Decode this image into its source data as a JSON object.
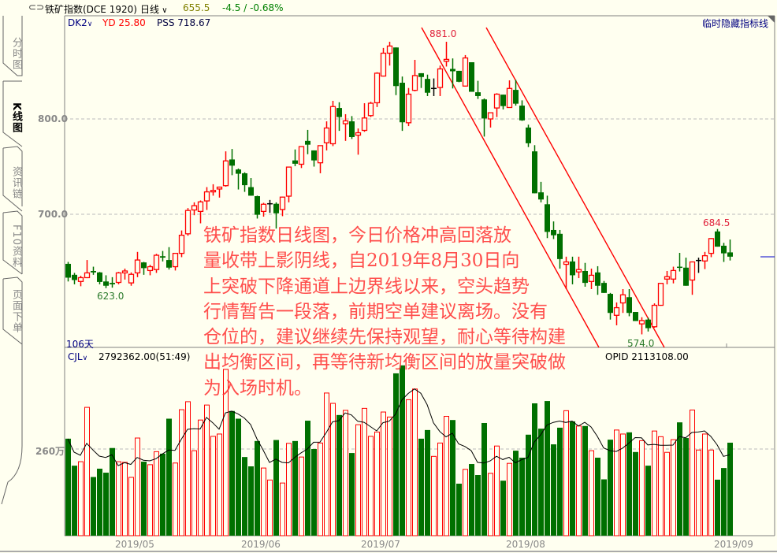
{
  "header": {
    "link_icon": "chain-link-icon",
    "instrument": "铁矿指数(DCE 1920)",
    "period": "日线",
    "last_price": "655.5",
    "change": "-4.5 / -0.68%",
    "hide_indicators_label": "临时隐藏指标线"
  },
  "sidebar": {
    "tabs": [
      {
        "label": "分时图",
        "active": false
      },
      {
        "label": "K线图",
        "active": true
      },
      {
        "label": "资讯链",
        "active": false
      },
      {
        "label": "F10资料",
        "active": false
      },
      {
        "label": "页面下单",
        "active": false
      }
    ]
  },
  "price_panel": {
    "indicator": "DK2",
    "yd_label": "YD 25.80",
    "pss_label": "PSS 718.67",
    "days_label": "106天",
    "high_label": "881.0",
    "low_label": "574.0",
    "left_low_label": "623.0",
    "right_high_label": "684.5"
  },
  "volume_panel": {
    "indicator": "CJL",
    "value_label": "2792362.00(51:49)",
    "opid_label": "OPID 2113108.00"
  },
  "annotation_text": "铁矿指数日线图，今日价格冲高回落放\n量收带上影阴线，自2019年8月30日向\n上突破下降通道上边界线以来，空头趋势\n行情暂告一段落，前期空单建议离场。没有\n仓位的，建议继续先保持观望，耐心等待构建\n出均衡区间，再等待新均衡区间的放量突破做\n为入场时机。",
  "colors": {
    "up": "#ff0000",
    "down": "#007000",
    "doji": "#000000",
    "background": "#fffff0",
    "channel": "#ff0000"
  },
  "chart_data": {
    "type": "candlestick",
    "price_ticks": [
      "800.0",
      "700.0"
    ],
    "price_tick_values": [
      800,
      700
    ],
    "volume_tick": "260万",
    "volume_tick_value": 260,
    "volume_unit": "万",
    "x_labels": [
      "2019/05",
      "2019/06",
      "2019/07",
      "2019/08",
      "2019/09"
    ],
    "ohlc": [
      [
        648,
        650,
        629.5,
        633.5
      ],
      [
        636.5,
        638.5,
        626.5,
        631
      ],
      [
        629.5,
        635.5,
        624.5,
        633.5
      ],
      [
        633.5,
        652,
        633,
        638.5
      ],
      [
        640.5,
        645,
        636.5,
        639
      ],
      [
        639,
        639.5,
        626.5,
        629
      ],
      [
        629.5,
        636,
        622.5,
        625
      ],
      [
        628,
        634,
        623,
        626.5
      ],
      [
        628.5,
        639.5,
        626.5,
        638.5
      ],
      [
        638.5,
        643,
        631.5,
        640.5
      ],
      [
        628,
        639,
        625,
        637
      ],
      [
        638.5,
        660.5,
        634,
        652
      ],
      [
        649.5,
        650,
        636.5,
        643.5
      ],
      [
        641,
        647,
        636,
        645
      ],
      [
        642,
        658.5,
        638.5,
        657
      ],
      [
        656,
        661.5,
        650.5,
        654.5
      ],
      [
        652,
        665.5,
        642,
        644
      ],
      [
        645,
        659,
        641,
        659
      ],
      [
        659,
        683,
        655,
        678
      ],
      [
        679.5,
        706.5,
        677.5,
        704
      ],
      [
        704.5,
        712.5,
        699,
        709
      ],
      [
        703,
        714.5,
        690.5,
        713
      ],
      [
        714,
        728.5,
        704.5,
        723.5
      ],
      [
        723.5,
        731.5,
        719.5,
        725
      ],
      [
        726.5,
        729,
        717.5,
        728.5
      ],
      [
        730,
        766,
        729,
        756
      ],
      [
        757.5,
        768.5,
        741,
        751
      ],
      [
        747,
        748,
        726,
        742.5
      ],
      [
        743,
        744,
        723.5,
        730.5
      ],
      [
        728.5,
        738,
        719.5,
        719.5
      ],
      [
        719,
        719.5,
        695.5,
        699.5
      ],
      [
        703,
        712,
        697.5,
        710.5
      ],
      [
        711,
        715,
        701.5,
        711
      ],
      [
        711,
        712.5,
        685,
        701
      ],
      [
        705,
        718.5,
        698,
        718
      ],
      [
        719,
        750,
        712.5,
        749.5
      ],
      [
        756.5,
        768,
        750.5,
        753
      ],
      [
        752.5,
        771,
        748.5,
        771
      ],
      [
        777,
        788.5,
        763,
        773
      ],
      [
        767,
        767,
        750,
        756.5
      ],
      [
        754,
        772,
        743,
        772
      ],
      [
        775,
        797.5,
        767,
        790.5
      ],
      [
        774,
        819,
        771.5,
        813
      ],
      [
        811.5,
        817.5,
        787.5,
        802
      ],
      [
        795,
        805,
        777,
        798
      ],
      [
        797.5,
        803,
        779,
        781
      ],
      [
        783,
        790,
        762.5,
        785.5
      ],
      [
        788,
        816.5,
        786.5,
        801
      ],
      [
        803.5,
        818,
        802,
        816.5
      ],
      [
        817,
        849,
        812.5,
        848
      ],
      [
        845,
        874.5,
        844.5,
        869
      ],
      [
        869,
        881,
        856,
        876.5
      ],
      [
        875,
        875,
        825,
        834.5
      ],
      [
        838,
        844.5,
        787.5,
        796.5
      ],
      [
        796,
        832.5,
        792.5,
        826
      ],
      [
        830,
        862,
        829,
        845.5
      ],
      [
        848,
        848,
        832.5,
        844
      ],
      [
        842,
        846.5,
        824,
        827.5
      ],
      [
        832,
        842.5,
        824,
        832
      ],
      [
        833,
        856,
        824,
        852.5
      ],
      [
        860.5,
        881,
        855,
        862.5
      ],
      [
        852.5,
        863.5,
        832,
        850
      ],
      [
        850.5,
        850.5,
        838.5,
        839
      ],
      [
        834.5,
        867,
        834,
        864
      ],
      [
        859.5,
        859.5,
        828.5,
        828.5
      ],
      [
        828,
        840,
        821,
        824
      ],
      [
        820.5,
        821.5,
        781.5,
        800.5
      ],
      [
        800,
        806.5,
        791,
        806.5
      ],
      [
        811.5,
        827,
        802,
        826
      ],
      [
        825.5,
        825.5,
        810,
        813.5
      ],
      [
        812,
        840.5,
        812,
        832
      ],
      [
        830.5,
        841,
        814,
        816
      ],
      [
        814,
        819.5,
        798,
        798.5
      ],
      [
        791,
        794,
        770.5,
        774.5
      ],
      [
        766,
        772.5,
        722,
        722
      ],
      [
        723,
        734,
        712.5,
        715.5
      ],
      [
        710.5,
        719.5,
        675,
        681.5
      ],
      [
        683.5,
        692.5,
        674,
        678
      ],
      [
        679.5,
        683.5,
        643,
        653
      ],
      [
        647.5,
        655.5,
        621.5,
        650
      ],
      [
        650.5,
        655.5,
        626.5,
        636
      ],
      [
        639.5,
        655.5,
        633,
        642
      ],
      [
        640.5,
        649,
        624,
        628
      ],
      [
        629.5,
        643,
        621.5,
        636
      ],
      [
        639,
        645.5,
        615.5,
        625
      ],
      [
        628,
        630,
        617.5,
        617.5
      ],
      [
        616.5,
        617.5,
        589.5,
        596.5
      ],
      [
        594,
        607.5,
        583.5,
        602
      ],
      [
        607,
        621.5,
        596.5,
        615.5
      ],
      [
        613,
        621.5,
        593,
        596.5
      ],
      [
        597.5,
        597.5,
        588,
        588
      ],
      [
        585,
        592,
        574,
        588.5
      ],
      [
        589.5,
        591.5,
        577,
        580.5
      ],
      [
        582,
        606.5,
        581,
        604.5
      ],
      [
        604.5,
        628,
        604,
        627.5
      ],
      [
        632,
        640.5,
        626.5,
        634.5
      ],
      [
        632,
        645,
        627.5,
        641
      ],
      [
        645,
        659.5,
        640,
        644
      ],
      [
        644,
        654.5,
        625,
        625
      ],
      [
        631,
        650.5,
        615.5,
        650
      ],
      [
        651.5,
        654.5,
        638.5,
        651.5
      ],
      [
        651,
        660.5,
        642.5,
        656.5
      ],
      [
        659,
        675,
        655,
        674.5
      ],
      [
        682,
        684.5,
        666,
        666
      ],
      [
        667,
        670,
        650,
        659
      ],
      [
        660,
        673.5,
        651.5,
        655.5
      ]
    ],
    "volume": [
      291,
      210,
      222,
      385,
      176,
      201,
      189,
      263,
      222,
      220,
      175,
      293,
      222,
      213,
      252,
      246,
      351,
      218,
      378,
      402,
      255,
      347,
      392,
      298,
      305,
      499,
      374,
      351,
      236,
      208,
      284,
      203,
      167,
      287,
      158,
      277,
      284,
      236,
      345,
      260,
      278,
      428,
      397,
      362,
      376,
      248,
      333,
      382,
      298,
      311,
      371,
      356,
      487,
      511,
      408,
      440,
      291,
      317,
      238,
      278,
      358,
      347,
      156,
      199,
      215,
      182,
      338,
      187,
      269,
      165,
      217,
      255,
      234,
      303,
      397,
      321,
      404,
      274,
      324,
      375,
      343,
      329,
      329,
      255,
      234,
      169,
      288,
      317,
      305,
      310,
      251,
      285,
      210,
      314,
      297,
      250,
      288,
      340,
      293,
      377,
      257,
      305,
      257,
      168,
      203,
      279
    ],
    "volume_up": [
      0,
      0,
      1,
      1,
      0,
      0,
      0,
      0,
      1,
      1,
      1,
      1,
      0,
      1,
      1,
      0,
      0,
      1,
      1,
      1,
      1,
      1,
      1,
      1,
      1,
      1,
      0,
      0,
      0,
      0,
      0,
      1,
      1,
      0,
      1,
      1,
      0,
      1,
      0,
      0,
      1,
      1,
      1,
      0,
      1,
      0,
      1,
      1,
      1,
      1,
      1,
      1,
      0,
      0,
      1,
      1,
      0,
      0,
      1,
      1,
      1,
      0,
      0,
      1,
      0,
      0,
      0,
      1,
      1,
      0,
      1,
      0,
      0,
      0,
      0,
      0,
      0,
      0,
      0,
      1,
      0,
      1,
      0,
      1,
      0,
      0,
      0,
      1,
      1,
      0,
      0,
      1,
      0,
      1,
      1,
      1,
      1,
      0,
      0,
      1,
      1,
      1,
      1,
      0,
      0,
      0
    ]
  }
}
